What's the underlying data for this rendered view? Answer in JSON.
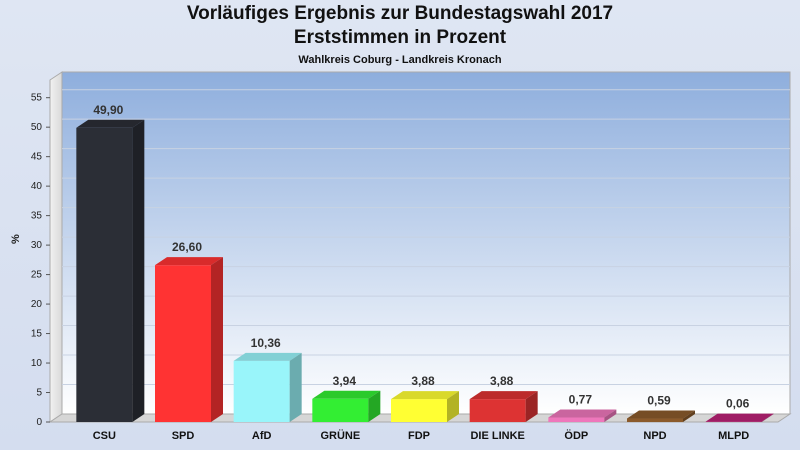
{
  "title": "Vorläufiges Ergebnis zur Bundestagswahl 2017",
  "subtitle": "Erststimmen in Prozent",
  "subsubtitle": "Wahlkreis Coburg - Landkreis Kronach",
  "chart_data": {
    "type": "bar",
    "title": "Vorläufiges Ergebnis zur Bundestagswahl 2017",
    "subtitle": "Erststimmen in Prozent",
    "ylabel": "%",
    "xlabel": "",
    "ylim": [
      0,
      58
    ],
    "yticks": [
      0,
      5,
      10,
      15,
      20,
      25,
      30,
      35,
      40,
      45,
      50,
      55
    ],
    "grid": true,
    "categories": [
      "CSU",
      "SPD",
      "AfD",
      "GRÜNE",
      "FDP",
      "DIE LINKE",
      "ÖDP",
      "NPD",
      "MLPD"
    ],
    "values": [
      49.9,
      26.6,
      10.36,
      3.94,
      3.88,
      3.88,
      0.77,
      0.59,
      0.06
    ],
    "value_labels": [
      "49,90",
      "26,60",
      "10,36",
      "3,94",
      "3,88",
      "3,88",
      "0,77",
      "0,59",
      "0,06"
    ],
    "colors": [
      "#2b2e36",
      "#ff3333",
      "#99f5fa",
      "#33ee33",
      "#ffff33",
      "#dd3333",
      "#ee77bb",
      "#8b5a2b",
      "#bb2277"
    ]
  }
}
